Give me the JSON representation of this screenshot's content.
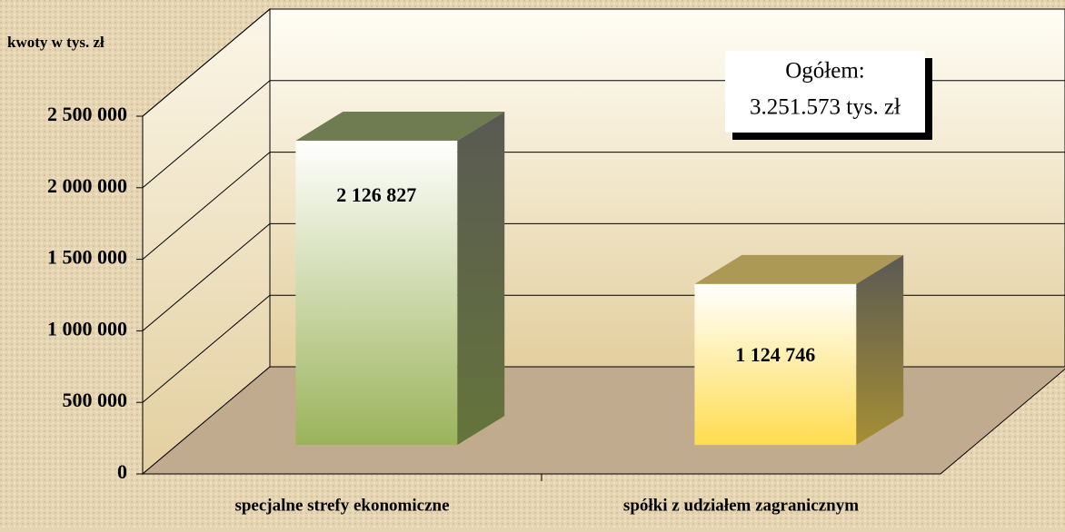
{
  "chart_data": {
    "type": "bar",
    "y_label": "kwoty w tys. zł",
    "categories": [
      "specjalne strefy ekonomiczne",
      "spółki z udziałem zagranicznym"
    ],
    "values": [
      2126827,
      1124746
    ],
    "value_labels": [
      "2 126 827",
      "1 124 746"
    ],
    "colors": [
      "#9bb35b",
      "#ffdc50"
    ],
    "ylim": [
      0,
      2500000
    ],
    "yticks": [
      0,
      {
        "value": 500000,
        "label": "500 000"
      },
      {
        "value": 1000000,
        "label": "1 000 000"
      },
      {
        "value": 1500000,
        "label": "1 500 000"
      },
      {
        "value": 2000000,
        "label": "2 000 000"
      },
      {
        "value": 2500000,
        "label": "2 500 000"
      }
    ],
    "grid": true,
    "annotation": [
      "Ogółem:",
      "3.251.573 tys. zł"
    ]
  }
}
